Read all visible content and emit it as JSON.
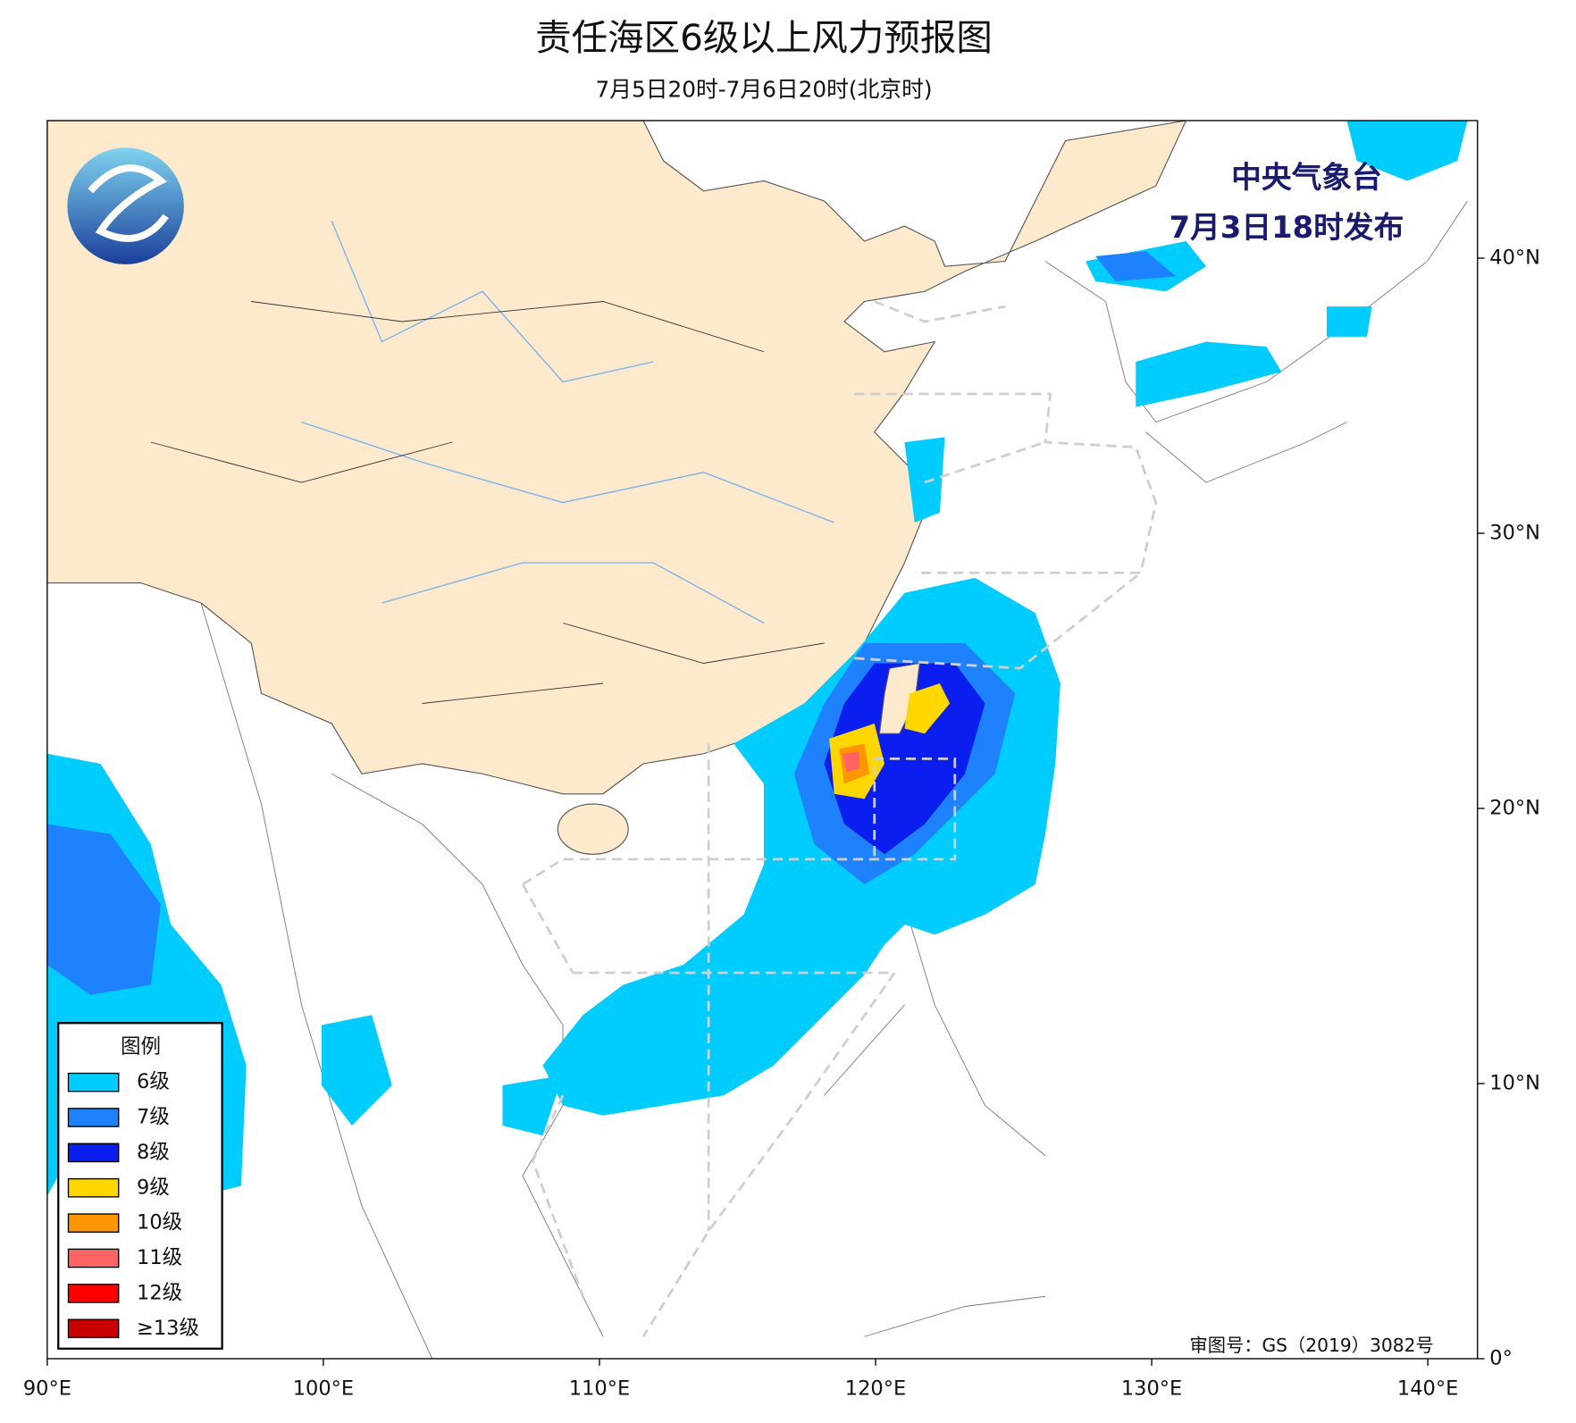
{
  "chart_data": {
    "type": "map",
    "title": "责任海区6级以上风力预报图",
    "subtitle": "7月5日20时-7月6日20时(北京时)",
    "issuer": "中央气象台",
    "issue_time": "7月3日18时发布",
    "approval": "审图号：GS（2019）3082号",
    "legend_title": "图例",
    "legend": [
      {
        "label": "6级",
        "color": "#00cdff"
      },
      {
        "label": "7级",
        "color": "#1e82ff"
      },
      {
        "label": "8级",
        "color": "#0a1ef0"
      },
      {
        "label": "9级",
        "color": "#ffd700"
      },
      {
        "label": "10级",
        "color": "#ff9600"
      },
      {
        "label": "11级",
        "color": "#ff6464"
      },
      {
        "label": "12级",
        "color": "#ff0000"
      },
      {
        "label": "≥13级",
        "color": "#c80000"
      }
    ],
    "xlim": [
      90,
      141.8
    ],
    "ylim": [
      0,
      45
    ],
    "xticks": [
      {
        "value": 90,
        "label": "90°E"
      },
      {
        "value": 100,
        "label": "100°E"
      },
      {
        "value": 110,
        "label": "110°E"
      },
      {
        "value": 120,
        "label": "120°E"
      },
      {
        "value": 130,
        "label": "130°E"
      },
      {
        "value": 140,
        "label": "140°E"
      }
    ],
    "yticks": [
      {
        "value": 0,
        "label": "0°"
      },
      {
        "value": 10,
        "label": "10°N"
      },
      {
        "value": 20,
        "label": "20°N"
      },
      {
        "value": 30,
        "label": "30°N"
      },
      {
        "value": 40,
        "label": "40°N"
      }
    ]
  }
}
